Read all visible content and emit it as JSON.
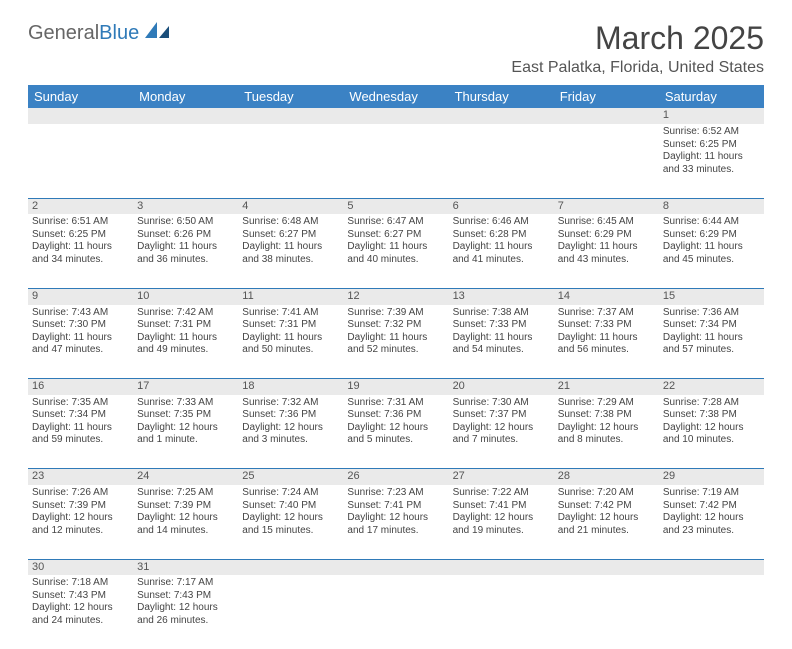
{
  "logo": {
    "text1": "General",
    "text2": "Blue"
  },
  "title": "March 2025",
  "location": "East Palatka, Florida, United States",
  "colors": {
    "header_bg": "#3b82c4",
    "header_text": "#ffffff",
    "daynum_bg": "#eaeaea",
    "border": "#2f7ab8",
    "text": "#444444",
    "logo_blue": "#2f7ab8",
    "logo_gray": "#666666"
  },
  "weekdays": [
    "Sunday",
    "Monday",
    "Tuesday",
    "Wednesday",
    "Thursday",
    "Friday",
    "Saturday"
  ],
  "weeks": [
    [
      null,
      null,
      null,
      null,
      null,
      null,
      {
        "n": "1",
        "sr": "Sunrise: 6:52 AM",
        "ss": "Sunset: 6:25 PM",
        "dl": "Daylight: 11 hours and 33 minutes."
      }
    ],
    [
      {
        "n": "2",
        "sr": "Sunrise: 6:51 AM",
        "ss": "Sunset: 6:25 PM",
        "dl": "Daylight: 11 hours and 34 minutes."
      },
      {
        "n": "3",
        "sr": "Sunrise: 6:50 AM",
        "ss": "Sunset: 6:26 PM",
        "dl": "Daylight: 11 hours and 36 minutes."
      },
      {
        "n": "4",
        "sr": "Sunrise: 6:48 AM",
        "ss": "Sunset: 6:27 PM",
        "dl": "Daylight: 11 hours and 38 minutes."
      },
      {
        "n": "5",
        "sr": "Sunrise: 6:47 AM",
        "ss": "Sunset: 6:27 PM",
        "dl": "Daylight: 11 hours and 40 minutes."
      },
      {
        "n": "6",
        "sr": "Sunrise: 6:46 AM",
        "ss": "Sunset: 6:28 PM",
        "dl": "Daylight: 11 hours and 41 minutes."
      },
      {
        "n": "7",
        "sr": "Sunrise: 6:45 AM",
        "ss": "Sunset: 6:29 PM",
        "dl": "Daylight: 11 hours and 43 minutes."
      },
      {
        "n": "8",
        "sr": "Sunrise: 6:44 AM",
        "ss": "Sunset: 6:29 PM",
        "dl": "Daylight: 11 hours and 45 minutes."
      }
    ],
    [
      {
        "n": "9",
        "sr": "Sunrise: 7:43 AM",
        "ss": "Sunset: 7:30 PM",
        "dl": "Daylight: 11 hours and 47 minutes."
      },
      {
        "n": "10",
        "sr": "Sunrise: 7:42 AM",
        "ss": "Sunset: 7:31 PM",
        "dl": "Daylight: 11 hours and 49 minutes."
      },
      {
        "n": "11",
        "sr": "Sunrise: 7:41 AM",
        "ss": "Sunset: 7:31 PM",
        "dl": "Daylight: 11 hours and 50 minutes."
      },
      {
        "n": "12",
        "sr": "Sunrise: 7:39 AM",
        "ss": "Sunset: 7:32 PM",
        "dl": "Daylight: 11 hours and 52 minutes."
      },
      {
        "n": "13",
        "sr": "Sunrise: 7:38 AM",
        "ss": "Sunset: 7:33 PM",
        "dl": "Daylight: 11 hours and 54 minutes."
      },
      {
        "n": "14",
        "sr": "Sunrise: 7:37 AM",
        "ss": "Sunset: 7:33 PM",
        "dl": "Daylight: 11 hours and 56 minutes."
      },
      {
        "n": "15",
        "sr": "Sunrise: 7:36 AM",
        "ss": "Sunset: 7:34 PM",
        "dl": "Daylight: 11 hours and 57 minutes."
      }
    ],
    [
      {
        "n": "16",
        "sr": "Sunrise: 7:35 AM",
        "ss": "Sunset: 7:34 PM",
        "dl": "Daylight: 11 hours and 59 minutes."
      },
      {
        "n": "17",
        "sr": "Sunrise: 7:33 AM",
        "ss": "Sunset: 7:35 PM",
        "dl": "Daylight: 12 hours and 1 minute."
      },
      {
        "n": "18",
        "sr": "Sunrise: 7:32 AM",
        "ss": "Sunset: 7:36 PM",
        "dl": "Daylight: 12 hours and 3 minutes."
      },
      {
        "n": "19",
        "sr": "Sunrise: 7:31 AM",
        "ss": "Sunset: 7:36 PM",
        "dl": "Daylight: 12 hours and 5 minutes."
      },
      {
        "n": "20",
        "sr": "Sunrise: 7:30 AM",
        "ss": "Sunset: 7:37 PM",
        "dl": "Daylight: 12 hours and 7 minutes."
      },
      {
        "n": "21",
        "sr": "Sunrise: 7:29 AM",
        "ss": "Sunset: 7:38 PM",
        "dl": "Daylight: 12 hours and 8 minutes."
      },
      {
        "n": "22",
        "sr": "Sunrise: 7:28 AM",
        "ss": "Sunset: 7:38 PM",
        "dl": "Daylight: 12 hours and 10 minutes."
      }
    ],
    [
      {
        "n": "23",
        "sr": "Sunrise: 7:26 AM",
        "ss": "Sunset: 7:39 PM",
        "dl": "Daylight: 12 hours and 12 minutes."
      },
      {
        "n": "24",
        "sr": "Sunrise: 7:25 AM",
        "ss": "Sunset: 7:39 PM",
        "dl": "Daylight: 12 hours and 14 minutes."
      },
      {
        "n": "25",
        "sr": "Sunrise: 7:24 AM",
        "ss": "Sunset: 7:40 PM",
        "dl": "Daylight: 12 hours and 15 minutes."
      },
      {
        "n": "26",
        "sr": "Sunrise: 7:23 AM",
        "ss": "Sunset: 7:41 PM",
        "dl": "Daylight: 12 hours and 17 minutes."
      },
      {
        "n": "27",
        "sr": "Sunrise: 7:22 AM",
        "ss": "Sunset: 7:41 PM",
        "dl": "Daylight: 12 hours and 19 minutes."
      },
      {
        "n": "28",
        "sr": "Sunrise: 7:20 AM",
        "ss": "Sunset: 7:42 PM",
        "dl": "Daylight: 12 hours and 21 minutes."
      },
      {
        "n": "29",
        "sr": "Sunrise: 7:19 AM",
        "ss": "Sunset: 7:42 PM",
        "dl": "Daylight: 12 hours and 23 minutes."
      }
    ],
    [
      {
        "n": "30",
        "sr": "Sunrise: 7:18 AM",
        "ss": "Sunset: 7:43 PM",
        "dl": "Daylight: 12 hours and 24 minutes."
      },
      {
        "n": "31",
        "sr": "Sunrise: 7:17 AM",
        "ss": "Sunset: 7:43 PM",
        "dl": "Daylight: 12 hours and 26 minutes."
      },
      null,
      null,
      null,
      null,
      null
    ]
  ]
}
